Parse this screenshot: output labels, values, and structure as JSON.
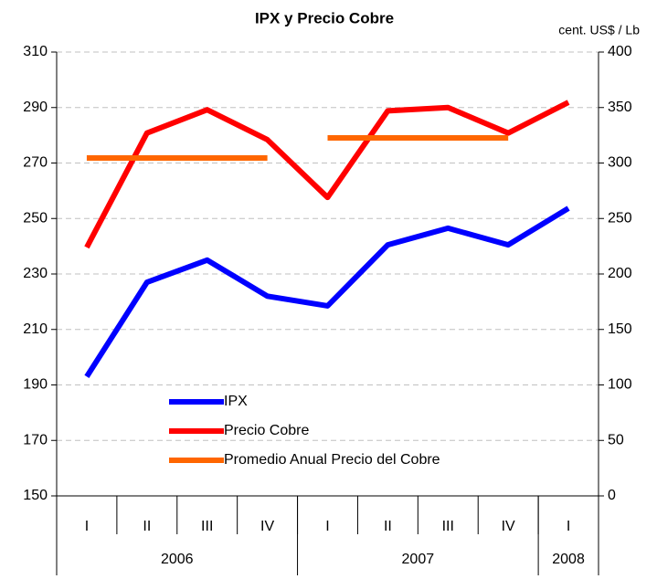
{
  "chart_data": {
    "type": "line",
    "title": "IPX y Precio Cobre",
    "y2_label": "cent. US$ / Lb",
    "categories": [
      "I",
      "II",
      "III",
      "IV",
      "I",
      "II",
      "III",
      "IV",
      "I"
    ],
    "groups": [
      {
        "label": "2006",
        "span": 4
      },
      {
        "label": "2007",
        "span": 4
      },
      {
        "label": "2008",
        "span": 1
      }
    ],
    "series": [
      {
        "name": "IPX",
        "color": "#0000ff",
        "values": [
          193,
          227,
          235,
          222,
          218.5,
          240.5,
          246.5,
          240.5,
          253.7
        ]
      },
      {
        "name": "Precio Cobre",
        "color": "#ff0000",
        "axis": "y2",
        "values": [
          224,
          327,
          348,
          321,
          269,
          347,
          350,
          327,
          354.7
        ]
      },
      {
        "name": "Promedio Anual Precio del Cobre",
        "color": "#ff6600",
        "axis": "y2",
        "by_group": true,
        "values": [
          304.5,
          304.5,
          304.5,
          304.5,
          322.6,
          322.6,
          322.6,
          322.6,
          null
        ]
      }
    ],
    "ylim": [
      150,
      310
    ],
    "yticks": [
      150,
      170,
      190,
      210,
      230,
      250,
      270,
      290,
      310
    ],
    "y2lim": [
      0,
      400
    ],
    "y2ticks": [
      0,
      50,
      100,
      150,
      200,
      250,
      300,
      350,
      400
    ],
    "grid": true,
    "legend": "lower left"
  }
}
